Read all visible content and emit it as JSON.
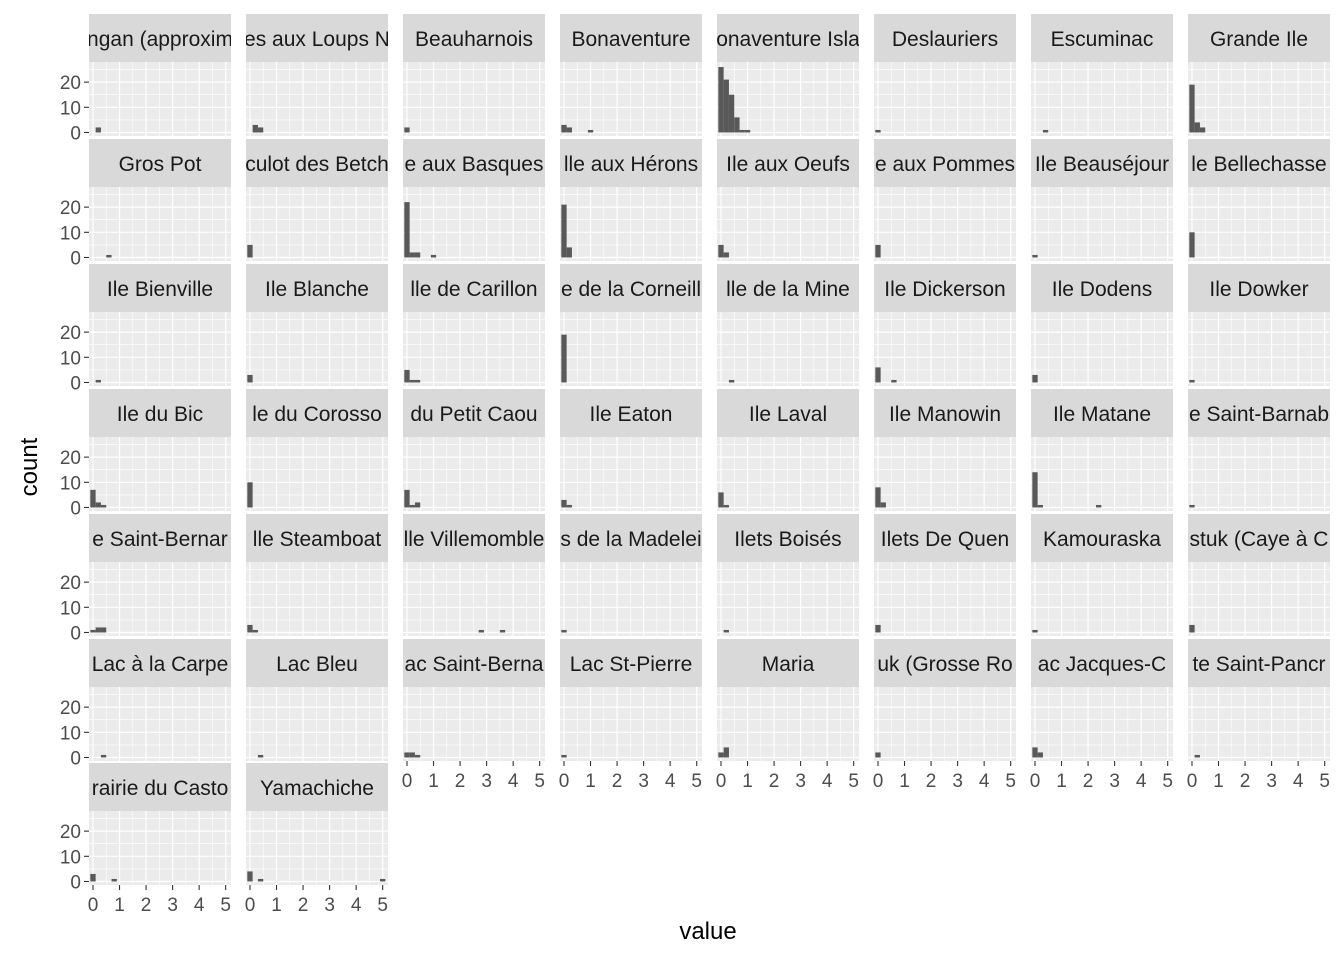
{
  "chart_data": {
    "type": "bar",
    "subtype": "faceted-histogram",
    "xlabel": "value",
    "ylabel": "count",
    "xlim": [
      0,
      5.2
    ],
    "ylim": [
      0,
      28
    ],
    "x_ticks": [
      0,
      1,
      2,
      3,
      4,
      5
    ],
    "y_ticks": [
      0,
      10,
      20
    ],
    "bin_width": 0.2,
    "grid": true,
    "colors": {
      "bar": "#595959",
      "panel_bg": "#ebebeb",
      "grid": "#ffffff",
      "strip_bg": "#d9d9d9",
      "strip_text": "#1a1a1a",
      "tick_text": "#4d4d4d"
    },
    "panels": [
      {
        "title": "ngan (approxim",
        "x_axis": false,
        "y_axis": true,
        "bins": [
          [
            0.2,
            2
          ]
        ]
      },
      {
        "title": "es aux Loups N",
        "x_axis": false,
        "y_axis": false,
        "bins": [
          [
            0.2,
            3
          ],
          [
            0.4,
            2
          ]
        ]
      },
      {
        "title": "Beauharnois",
        "x_axis": false,
        "y_axis": false,
        "bins": [
          [
            0,
            2
          ]
        ]
      },
      {
        "title": "Bonaventure",
        "x_axis": false,
        "y_axis": false,
        "bins": [
          [
            0,
            3
          ],
          [
            0.2,
            2
          ],
          [
            1,
            1
          ]
        ]
      },
      {
        "title": "onaventure Isla",
        "x_axis": false,
        "y_axis": false,
        "bins": [
          [
            0,
            26
          ],
          [
            0.2,
            21
          ],
          [
            0.4,
            15
          ],
          [
            0.6,
            6
          ],
          [
            0.8,
            1
          ],
          [
            1,
            1
          ]
        ]
      },
      {
        "title": "Deslauriers",
        "x_axis": false,
        "y_axis": false,
        "bins": [
          [
            0,
            1
          ]
        ]
      },
      {
        "title": "Escuminac",
        "x_axis": false,
        "y_axis": false,
        "bins": [
          [
            0.4,
            1
          ]
        ]
      },
      {
        "title": "Grande Ile",
        "x_axis": false,
        "y_axis": false,
        "bins": [
          [
            0,
            19
          ],
          [
            0.2,
            4
          ],
          [
            0.4,
            2
          ]
        ]
      },
      {
        "title": "Gros Pot",
        "x_axis": false,
        "y_axis": true,
        "bins": [
          [
            0.6,
            1
          ]
        ]
      },
      {
        "title": "culot des Betch",
        "x_axis": false,
        "y_axis": false,
        "bins": [
          [
            0,
            5
          ]
        ]
      },
      {
        "title": "e aux Basques",
        "x_axis": false,
        "y_axis": false,
        "bins": [
          [
            0,
            22
          ],
          [
            0.2,
            2
          ],
          [
            0.4,
            2
          ],
          [
            1,
            1
          ]
        ]
      },
      {
        "title": "lle aux Hérons",
        "x_axis": false,
        "y_axis": false,
        "bins": [
          [
            0,
            21
          ],
          [
            0.2,
            4
          ]
        ]
      },
      {
        "title": "Ile aux Oeufs",
        "x_axis": false,
        "y_axis": false,
        "bins": [
          [
            0,
            5
          ],
          [
            0.2,
            2
          ]
        ]
      },
      {
        "title": "e aux Pommes",
        "x_axis": false,
        "y_axis": false,
        "bins": [
          [
            0,
            5
          ]
        ]
      },
      {
        "title": "Ile Beauséjour",
        "x_axis": false,
        "y_axis": false,
        "bins": [
          [
            0,
            1
          ]
        ]
      },
      {
        "title": "le Bellechasse",
        "x_axis": false,
        "y_axis": false,
        "bins": [
          [
            0,
            10
          ]
        ]
      },
      {
        "title": "Ile Bienville",
        "x_axis": false,
        "y_axis": true,
        "bins": [
          [
            0.2,
            1
          ]
        ]
      },
      {
        "title": "Ile Blanche",
        "x_axis": false,
        "y_axis": false,
        "bins": [
          [
            0,
            3
          ]
        ]
      },
      {
        "title": "lle de Carillon",
        "x_axis": false,
        "y_axis": false,
        "bins": [
          [
            0,
            5
          ],
          [
            0.2,
            1
          ],
          [
            0.4,
            1
          ]
        ]
      },
      {
        "title": "e de la Corneill",
        "x_axis": false,
        "y_axis": false,
        "bins": [
          [
            0,
            19
          ]
        ]
      },
      {
        "title": "lle de la Mine",
        "x_axis": false,
        "y_axis": false,
        "bins": [
          [
            0.4,
            1
          ]
        ]
      },
      {
        "title": "Ile Dickerson",
        "x_axis": false,
        "y_axis": false,
        "bins": [
          [
            0,
            6
          ],
          [
            0.6,
            1
          ]
        ]
      },
      {
        "title": "Ile Dodens",
        "x_axis": false,
        "y_axis": false,
        "bins": [
          [
            0,
            3
          ]
        ]
      },
      {
        "title": "Ile Dowker",
        "x_axis": false,
        "y_axis": false,
        "bins": [
          [
            0,
            1
          ]
        ]
      },
      {
        "title": "Ile du Bic",
        "x_axis": false,
        "y_axis": true,
        "bins": [
          [
            0,
            7
          ],
          [
            0.2,
            2
          ],
          [
            0.4,
            1
          ]
        ]
      },
      {
        "title": "le du Corosso",
        "x_axis": false,
        "y_axis": false,
        "bins": [
          [
            0,
            10
          ]
        ]
      },
      {
        "title": "du Petit Caou",
        "x_axis": false,
        "y_axis": false,
        "bins": [
          [
            0,
            7
          ],
          [
            0.2,
            1
          ],
          [
            0.4,
            2
          ]
        ]
      },
      {
        "title": "Ile Eaton",
        "x_axis": false,
        "y_axis": false,
        "bins": [
          [
            0,
            3
          ],
          [
            0.2,
            1
          ]
        ]
      },
      {
        "title": "Ile Laval",
        "x_axis": false,
        "y_axis": false,
        "bins": [
          [
            0,
            6
          ],
          [
            0.2,
            1
          ]
        ]
      },
      {
        "title": "Ile Manowin",
        "x_axis": false,
        "y_axis": false,
        "bins": [
          [
            0,
            8
          ],
          [
            0.2,
            2
          ]
        ]
      },
      {
        "title": "Ile Matane",
        "x_axis": false,
        "y_axis": false,
        "bins": [
          [
            0,
            14
          ],
          [
            0.2,
            1
          ],
          [
            2.4,
            1
          ]
        ]
      },
      {
        "title": "e Saint-Barnab",
        "x_axis": false,
        "y_axis": false,
        "bins": [
          [
            0,
            1
          ]
        ]
      },
      {
        "title": "e Saint-Bernar",
        "x_axis": false,
        "y_axis": true,
        "bins": [
          [
            0,
            1
          ],
          [
            0.2,
            2
          ],
          [
            0.4,
            2
          ]
        ]
      },
      {
        "title": "lle Steamboat",
        "x_axis": false,
        "y_axis": false,
        "bins": [
          [
            0,
            3
          ],
          [
            0.2,
            1
          ]
        ]
      },
      {
        "title": "lle Villemomble",
        "x_axis": false,
        "y_axis": false,
        "bins": [
          [
            2.8,
            1
          ],
          [
            3.6,
            1
          ]
        ]
      },
      {
        "title": "s de la Madelei",
        "x_axis": false,
        "y_axis": false,
        "bins": [
          [
            0,
            1
          ]
        ]
      },
      {
        "title": "Ilets Boisés",
        "x_axis": false,
        "y_axis": false,
        "bins": [
          [
            0.2,
            1
          ]
        ]
      },
      {
        "title": "Ilets De Quen",
        "x_axis": false,
        "y_axis": false,
        "bins": [
          [
            0,
            3
          ]
        ]
      },
      {
        "title": "Kamouraska",
        "x_axis": false,
        "y_axis": false,
        "bins": [
          [
            0,
            1
          ]
        ]
      },
      {
        "title": "stuk (Caye à C",
        "x_axis": false,
        "y_axis": false,
        "bins": [
          [
            0,
            3
          ]
        ]
      },
      {
        "title": "Lac à la Carpe",
        "x_axis": false,
        "y_axis": true,
        "bins": [
          [
            0.4,
            1
          ]
        ]
      },
      {
        "title": "Lac Bleu",
        "x_axis": false,
        "y_axis": false,
        "bins": [
          [
            0.4,
            1
          ]
        ]
      },
      {
        "title": "ac Saint-Berna",
        "x_axis": true,
        "y_axis": false,
        "bins": [
          [
            0,
            2
          ],
          [
            0.2,
            2
          ],
          [
            0.4,
            1
          ]
        ]
      },
      {
        "title": "Lac St-Pierre",
        "x_axis": true,
        "y_axis": false,
        "bins": [
          [
            0,
            1
          ]
        ]
      },
      {
        "title": "Maria",
        "x_axis": true,
        "y_axis": false,
        "bins": [
          [
            0,
            2
          ],
          [
            0.2,
            4
          ]
        ]
      },
      {
        "title": "uk (Grosse Ro",
        "x_axis": true,
        "y_axis": false,
        "bins": [
          [
            0,
            2
          ]
        ]
      },
      {
        "title": "ac Jacques-C",
        "x_axis": true,
        "y_axis": false,
        "bins": [
          [
            0,
            4
          ],
          [
            0.2,
            2
          ]
        ]
      },
      {
        "title": "te Saint-Pancr",
        "x_axis": true,
        "y_axis": false,
        "bins": [
          [
            0.2,
            1
          ]
        ]
      },
      {
        "title": "rairie du Casto",
        "x_axis": true,
        "y_axis": true,
        "bins": [
          [
            0,
            3
          ],
          [
            0.8,
            1
          ]
        ]
      },
      {
        "title": "Yamachiche",
        "x_axis": true,
        "y_axis": false,
        "bins": [
          [
            0,
            4
          ],
          [
            0.4,
            1
          ],
          [
            5,
            1
          ]
        ]
      }
    ]
  }
}
